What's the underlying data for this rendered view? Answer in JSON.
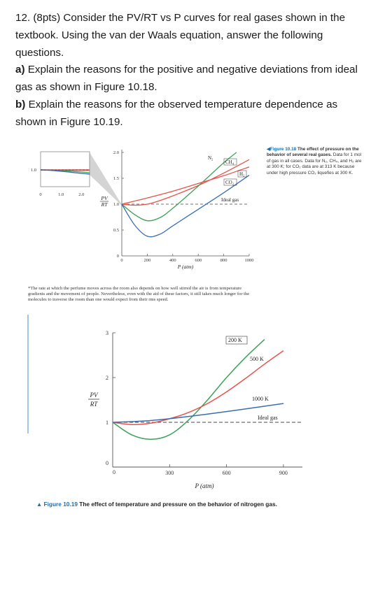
{
  "question": {
    "intro": "12. (8pts) Consider the PV/RT vs P curves for real gases shown in the textbook. Using the van der Waals equation, answer the following questions.",
    "part_a_label": "a)",
    "part_a": "Explain the reasons for the positive and negative deviations from ideal gas as shown in Figure 10.18.",
    "part_b_label": "b)",
    "part_b": "Explain the reasons for the observed temperature dependence as shown in Figure 10.19."
  },
  "figure18": {
    "caption_label": "Figure 10.18",
    "caption_title": "The effect of pressure on the behavior of several real gases.",
    "caption_text": "Data for 1 mol of gas in all cases. Data for N₂, CH₄, and H₂ are at 300 K; for CO₂ data are at 313 K because under high pressure CO₂ liquefies at 300 K.",
    "colors": {
      "N2": "#e8524a",
      "CH4": "#3aa357",
      "H2": "#e8524a",
      "CO2": "#3b6eb0",
      "ideal": "#444444"
    }
  },
  "footnote": "*The rate at which the perfume moves across the room also depends on how well stirred the air is from temperature gradients and the movement of people. Nevertheless, even with the aid of these factors, it still takes much longer for the molecules to traverse the room than one would expect from their rms speed.",
  "figure19": {
    "caption_label": "Figure 10.19",
    "caption_text": "The effect of temperature and pressure on the behavior of nitrogen gas.",
    "colors": {
      "T200": "#3aa357",
      "T500": "#e8524a",
      "T1000": "#3b6eb0",
      "ideal": "#444444"
    }
  },
  "chart_data": [
    {
      "type": "line",
      "xlabel": "P (atm)",
      "ylabel": "PV/RT",
      "xlim": [
        0,
        1000
      ],
      "ylim": [
        0,
        2.0
      ],
      "x_ticks": [
        "200",
        "400",
        "600",
        "800",
        "1000"
      ],
      "y_ticks": [
        "0.5",
        "1.0",
        "1.5",
        "2.0"
      ],
      "inset": {
        "x_ticks": [
          "1.0",
          "2.0"
        ],
        "y_ticks": [
          "1.0"
        ]
      },
      "series": [
        {
          "name": "N₂",
          "x": [
            0,
            100,
            200,
            300,
            400,
            600,
            800,
            1000
          ],
          "y": [
            1.0,
            0.98,
            1.0,
            1.07,
            1.16,
            1.36,
            1.6,
            1.86
          ]
        },
        {
          "name": "CH₄",
          "x": [
            0,
            100,
            200,
            300,
            400,
            600,
            800,
            900
          ],
          "y": [
            1.0,
            0.8,
            0.68,
            0.74,
            0.92,
            1.35,
            1.8,
            2.0
          ]
        },
        {
          "name": "H₂",
          "x": [
            0,
            200,
            400,
            600,
            800,
            1000
          ],
          "y": [
            1.0,
            1.12,
            1.25,
            1.4,
            1.55,
            1.72
          ]
        },
        {
          "name": "CO₂",
          "x": [
            0,
            100,
            200,
            300,
            400,
            600,
            800,
            1000
          ],
          "y": [
            1.0,
            0.6,
            0.38,
            0.42,
            0.58,
            0.9,
            1.22,
            1.56
          ]
        },
        {
          "name": "Ideal gas",
          "x": [
            0,
            1000
          ],
          "y": [
            1.0,
            1.0
          ]
        }
      ]
    },
    {
      "type": "line",
      "xlabel": "P (atm)",
      "ylabel": "PV/RT",
      "xlim": [
        0,
        1000
      ],
      "ylim": [
        0,
        3
      ],
      "x_ticks": [
        "300",
        "600",
        "900"
      ],
      "y_ticks": [
        "0",
        "1",
        "2",
        "3"
      ],
      "series": [
        {
          "name": "200 K",
          "x": [
            0,
            100,
            200,
            300,
            400,
            500,
            600,
            700,
            800
          ],
          "y": [
            1.0,
            0.72,
            0.62,
            0.72,
            1.05,
            1.5,
            2.0,
            2.45,
            2.85
          ]
        },
        {
          "name": "500 K",
          "x": [
            0,
            100,
            200,
            300,
            400,
            500,
            600,
            700,
            800,
            900
          ],
          "y": [
            1.0,
            0.95,
            0.98,
            1.08,
            1.22,
            1.42,
            1.68,
            1.98,
            2.3,
            2.6
          ]
        },
        {
          "name": "1000 K",
          "x": [
            0,
            200,
            400,
            600,
            800,
            900
          ],
          "y": [
            1.0,
            1.04,
            1.13,
            1.24,
            1.36,
            1.42
          ]
        },
        {
          "name": "Ideal gas",
          "x": [
            0,
            1000
          ],
          "y": [
            1.0,
            1.0
          ]
        }
      ]
    }
  ]
}
